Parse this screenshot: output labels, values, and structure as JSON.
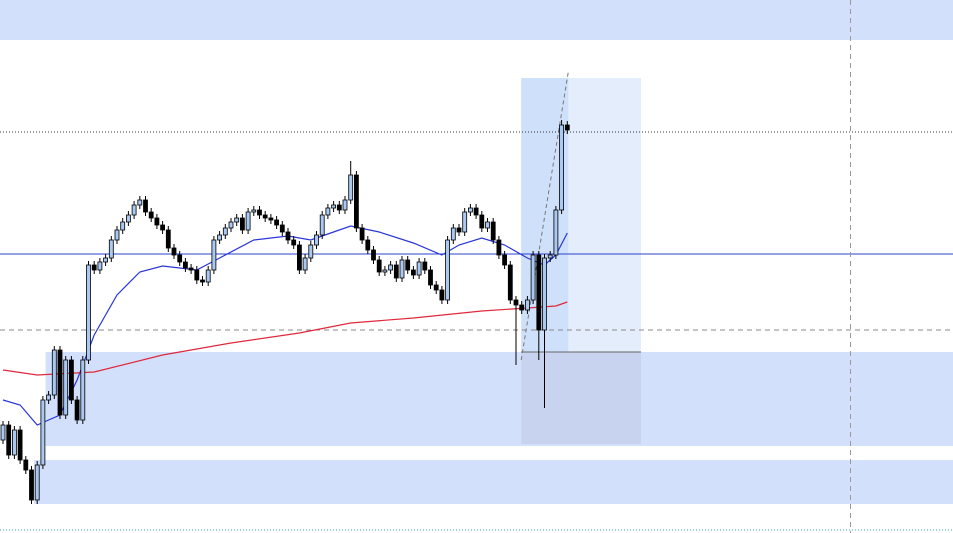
{
  "chart_data": {
    "type": "candlestick",
    "ylim": [
      0,
      533
    ],
    "open": [
      93,
      108,
      78,
      103,
      73,
      63,
      33,
      68,
      133,
      138,
      183,
      118,
      173,
      133,
      113,
      173,
      268,
      263,
      271,
      275,
      293,
      303,
      311,
      318,
      328,
      333,
      321,
      315,
      308,
      303,
      285,
      278,
      271,
      265,
      263,
      253,
      251,
      263,
      293,
      298,
      305,
      311,
      315,
      303,
      321,
      323,
      318,
      315,
      313,
      308,
      301,
      293,
      288,
      263,
      275,
      288,
      298,
      318,
      325,
      328,
      323,
      333,
      358,
      305,
      293,
      283,
      273,
      261,
      263,
      268,
      255,
      273,
      263,
      258,
      271,
      263,
      248,
      243,
      233,
      293,
      305,
      301,
      321,
      325,
      318,
      305,
      311,
      293,
      278,
      268,
      233,
      228,
      223,
      233,
      278,
      203,
      275,
      278,
      323,
      408
    ],
    "high": [
      112,
      112,
      107,
      107,
      77,
      67,
      72,
      137,
      142,
      187,
      187,
      177,
      177,
      137,
      177,
      272,
      272,
      275,
      279,
      297,
      307,
      315,
      322,
      332,
      337,
      337,
      325,
      319,
      312,
      307,
      289,
      282,
      275,
      269,
      267,
      257,
      267,
      297,
      302,
      309,
      315,
      319,
      319,
      325,
      327,
      327,
      322,
      319,
      317,
      312,
      305,
      297,
      292,
      279,
      292,
      302,
      322,
      329,
      332,
      332,
      337,
      372,
      362,
      309,
      297,
      287,
      277,
      267,
      272,
      272,
      277,
      277,
      267,
      275,
      275,
      267,
      252,
      247,
      297,
      309,
      309,
      325,
      329,
      329,
      322,
      315,
      315,
      297,
      282,
      272,
      237,
      232,
      237,
      282,
      282,
      279,
      282,
      327,
      413,
      412
    ],
    "low": [
      89,
      74,
      74,
      69,
      59,
      29,
      29,
      64,
      129,
      134,
      114,
      114,
      129,
      109,
      109,
      169,
      259,
      259,
      267,
      271,
      289,
      299,
      307,
      314,
      324,
      317,
      311,
      304,
      299,
      281,
      274,
      267,
      261,
      259,
      249,
      247,
      247,
      259,
      289,
      294,
      301,
      307,
      299,
      299,
      317,
      314,
      311,
      309,
      304,
      297,
      289,
      284,
      259,
      259,
      271,
      284,
      294,
      314,
      321,
      319,
      319,
      329,
      301,
      289,
      279,
      269,
      257,
      257,
      259,
      251,
      251,
      259,
      254,
      254,
      259,
      244,
      239,
      229,
      229,
      289,
      297,
      297,
      317,
      314,
      301,
      301,
      289,
      274,
      264,
      229,
      168,
      219,
      219,
      229,
      173,
      125,
      271,
      274,
      319,
      399
    ],
    "close": [
      108,
      78,
      103,
      73,
      63,
      33,
      68,
      133,
      138,
      183,
      118,
      173,
      133,
      113,
      173,
      268,
      263,
      271,
      275,
      293,
      303,
      311,
      318,
      328,
      333,
      321,
      315,
      308,
      303,
      285,
      278,
      271,
      265,
      263,
      253,
      251,
      263,
      293,
      298,
      305,
      311,
      315,
      303,
      321,
      323,
      318,
      315,
      313,
      308,
      301,
      293,
      288,
      263,
      275,
      288,
      298,
      318,
      325,
      328,
      323,
      333,
      358,
      305,
      293,
      283,
      273,
      261,
      263,
      268,
      255,
      273,
      263,
      258,
      271,
      263,
      248,
      243,
      233,
      293,
      305,
      301,
      321,
      325,
      318,
      305,
      311,
      293,
      278,
      268,
      233,
      228,
      223,
      233,
      278,
      203,
      275,
      278,
      323,
      408,
      403
    ],
    "up_color": "#a9c8f2",
    "down_color": "#000000",
    "series": [
      {
        "color": "#2a35d8",
        "x": [
          0,
          3,
          6,
          8,
          10,
          13,
          16,
          20,
          24,
          28,
          31,
          34,
          38,
          44,
          50,
          54,
          58,
          61,
          66,
          72,
          77,
          80,
          84,
          88,
          92,
          95,
          97,
          99
        ],
        "values": [
          133,
          128,
          108,
          113,
          118,
          153,
          198,
          238,
          261,
          267,
          265,
          263,
          275,
          293,
          297,
          293,
          301,
          307,
          301,
          290,
          278,
          288,
          295,
          288,
          275,
          268,
          278,
          300
        ]
      },
      {
        "color": "#e0283c",
        "x": [
          0,
          6,
          16,
          28,
          40,
          52,
          61,
          72,
          84,
          92,
          97,
          99
        ],
        "values": [
          163,
          158,
          161,
          178,
          190,
          200,
          210,
          215,
          222,
          225,
          227,
          231
        ]
      }
    ],
    "levels": [
      {
        "value": 279,
        "color": "#2a40d0",
        "style": "solid"
      },
      {
        "value": 401,
        "color": "#333333",
        "style": "dotted"
      },
      {
        "value": 203,
        "color": "#888888",
        "style": "dashed"
      }
    ],
    "zones": [
      {
        "from": 493,
        "to": 533,
        "start": 0
      },
      {
        "from": 87,
        "to": 181,
        "start": 8
      },
      {
        "from": 29,
        "to": 73,
        "start": 6
      }
    ],
    "position": {
      "entry": 181,
      "target": 455,
      "stop": 89,
      "start": 91
    }
  }
}
